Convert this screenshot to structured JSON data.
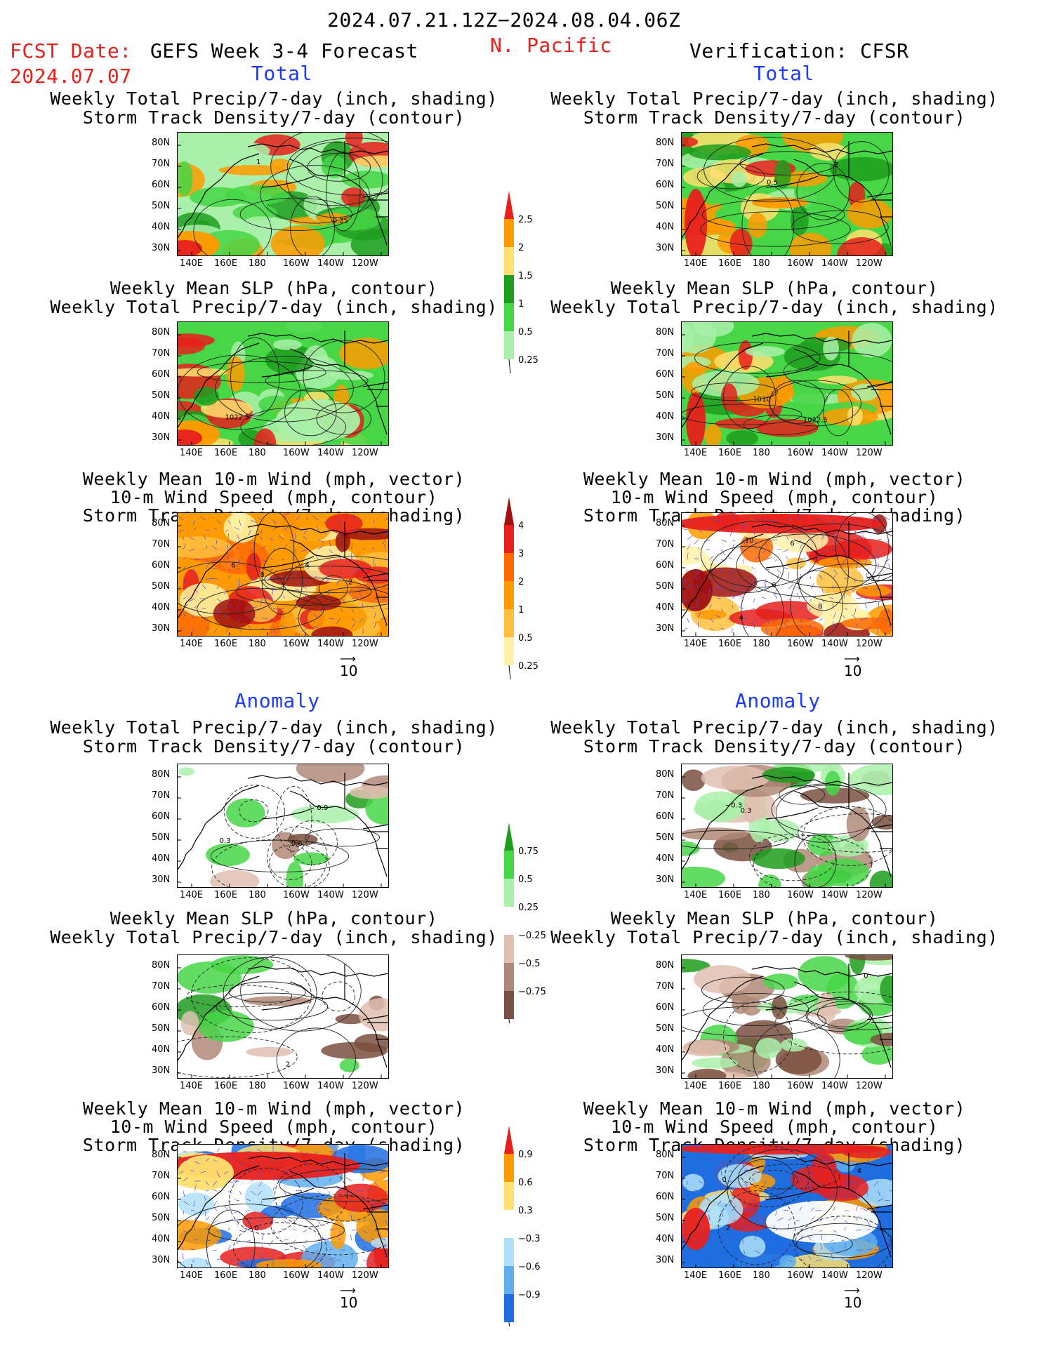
{
  "header": {
    "date_range": "2024.07.21.12Z−2024.08.04.06Z",
    "fcst_label": "FCST Date:",
    "fcst_date": "2024.07.07",
    "model": "GEFS Week 3-4 Forecast",
    "region": "N. Pacific",
    "verification": "Verification: CFSR"
  },
  "sections": {
    "total": "Total",
    "anomaly": "Anomaly"
  },
  "titles": {
    "precip": [
      "Weekly Total Precip/7-day (inch, shading)",
      "Storm Track Density/7-day (contour)"
    ],
    "slp": [
      "Weekly Mean SLP (hPa, contour)",
      "Weekly Total Precip/7-day (inch, shading)"
    ],
    "wind": [
      "Weekly Mean 10-m Wind (mph, vector)",
      "10-m Wind Speed (mph, contour)",
      "Storm Track Density/7-day (shading)"
    ]
  },
  "axes": {
    "lat": [
      "80N",
      "70N",
      "60N",
      "50N",
      "40N",
      "30N"
    ],
    "lon": [
      "140E",
      "160E",
      "180",
      "160W",
      "140W",
      "120W"
    ]
  },
  "vector_ref": "10",
  "colorbars": {
    "precip_total": {
      "labels": [
        "2.5",
        "2",
        "1.5",
        "1",
        "0.5",
        "0.25"
      ],
      "colors": [
        "#e8201c",
        "#ff9a00",
        "#ffe070",
        "#1e9e1e",
        "#46d646",
        "#aaf0aa"
      ]
    },
    "std_total": {
      "labels": [
        "4",
        "3",
        "2",
        "1",
        "0.5",
        "0.25"
      ],
      "colors": [
        "#a01010",
        "#e8201c",
        "#ff6a00",
        "#ff9a00",
        "#ffc040",
        "#fff2a8"
      ]
    },
    "precip_anom": {
      "labels": [
        "0.75",
        "0.5",
        "0.25",
        "−0.25",
        "−0.5",
        "−0.75"
      ],
      "colors": [
        "#1e9e1e",
        "#46d646",
        "#aaf0aa",
        "#ffffff",
        "#e0c0b0",
        "#b08878",
        "#7a5040"
      ]
    },
    "std_anom": {
      "labels": [
        "0.9",
        "0.6",
        "0.3",
        "−0.3",
        "−0.6",
        "−0.9"
      ],
      "colors": [
        "#e8201c",
        "#ff9a00",
        "#ffe070",
        "#ffffff",
        "#b0e0f8",
        "#60b0f0",
        "#1e6ee0"
      ]
    }
  },
  "contour_labels": {
    "fp": [
      "1",
      "0.25"
    ],
    "vp": [
      "2",
      "0.5"
    ],
    "fs": [
      "1022.5"
    ],
    "vs": [
      "1022.5",
      "1010"
    ],
    "fw": [
      "2",
      "4",
      "6",
      "8"
    ],
    "vw": [
      "6",
      "4",
      "6",
      "8",
      "10"
    ],
    "fpa": [
      "0.9",
      "0.6",
      "0.3"
    ],
    "vpa": [
      "0.3",
      "−0.3"
    ],
    "fsa": [
      "2"
    ],
    "vsa": [
      "0"
    ],
    "fwa": [
      "0"
    ],
    "vwa": [
      "4",
      "2",
      "0"
    ]
  }
}
